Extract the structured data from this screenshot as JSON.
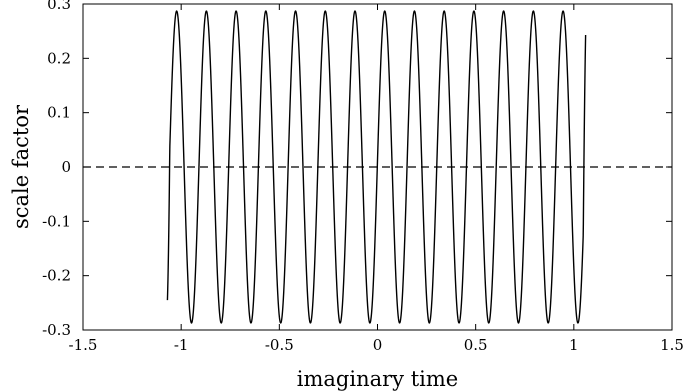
{
  "chart_data": {
    "type": "line",
    "title": "",
    "xlabel": "imaginary time",
    "ylabel": "scale factor",
    "xlim": [
      -1.5,
      1.5
    ],
    "ylim": [
      -0.3,
      0.3
    ],
    "x_ticks": [
      -1.5,
      -1,
      -0.5,
      0,
      0.5,
      1,
      1.5
    ],
    "x_tick_labels": [
      "-1.5",
      "-1",
      "-0.5",
      "0",
      "0.5",
      "1",
      "1.5"
    ],
    "y_ticks": [
      -0.3,
      -0.2,
      -0.1,
      0,
      0.1,
      0.2,
      0.3
    ],
    "y_tick_labels": [
      "-0.3",
      "-0.2",
      "-0.1",
      "0",
      "0.1",
      "0.2",
      "0.3"
    ],
    "grid": false,
    "series": [
      {
        "style": "solid",
        "color": "#000000",
        "function": "oscillation",
        "x_start": -1.07,
        "x_end": 1.06,
        "amplitude": 0.287,
        "period": 0.1514,
        "peak_x": -1.023,
        "y_at_start": -0.245,
        "y_at_end": 0.243
      },
      {
        "style": "dashed",
        "color": "#000000",
        "y": 0,
        "x_start": -1.5,
        "x_end": 1.5
      }
    ]
  }
}
